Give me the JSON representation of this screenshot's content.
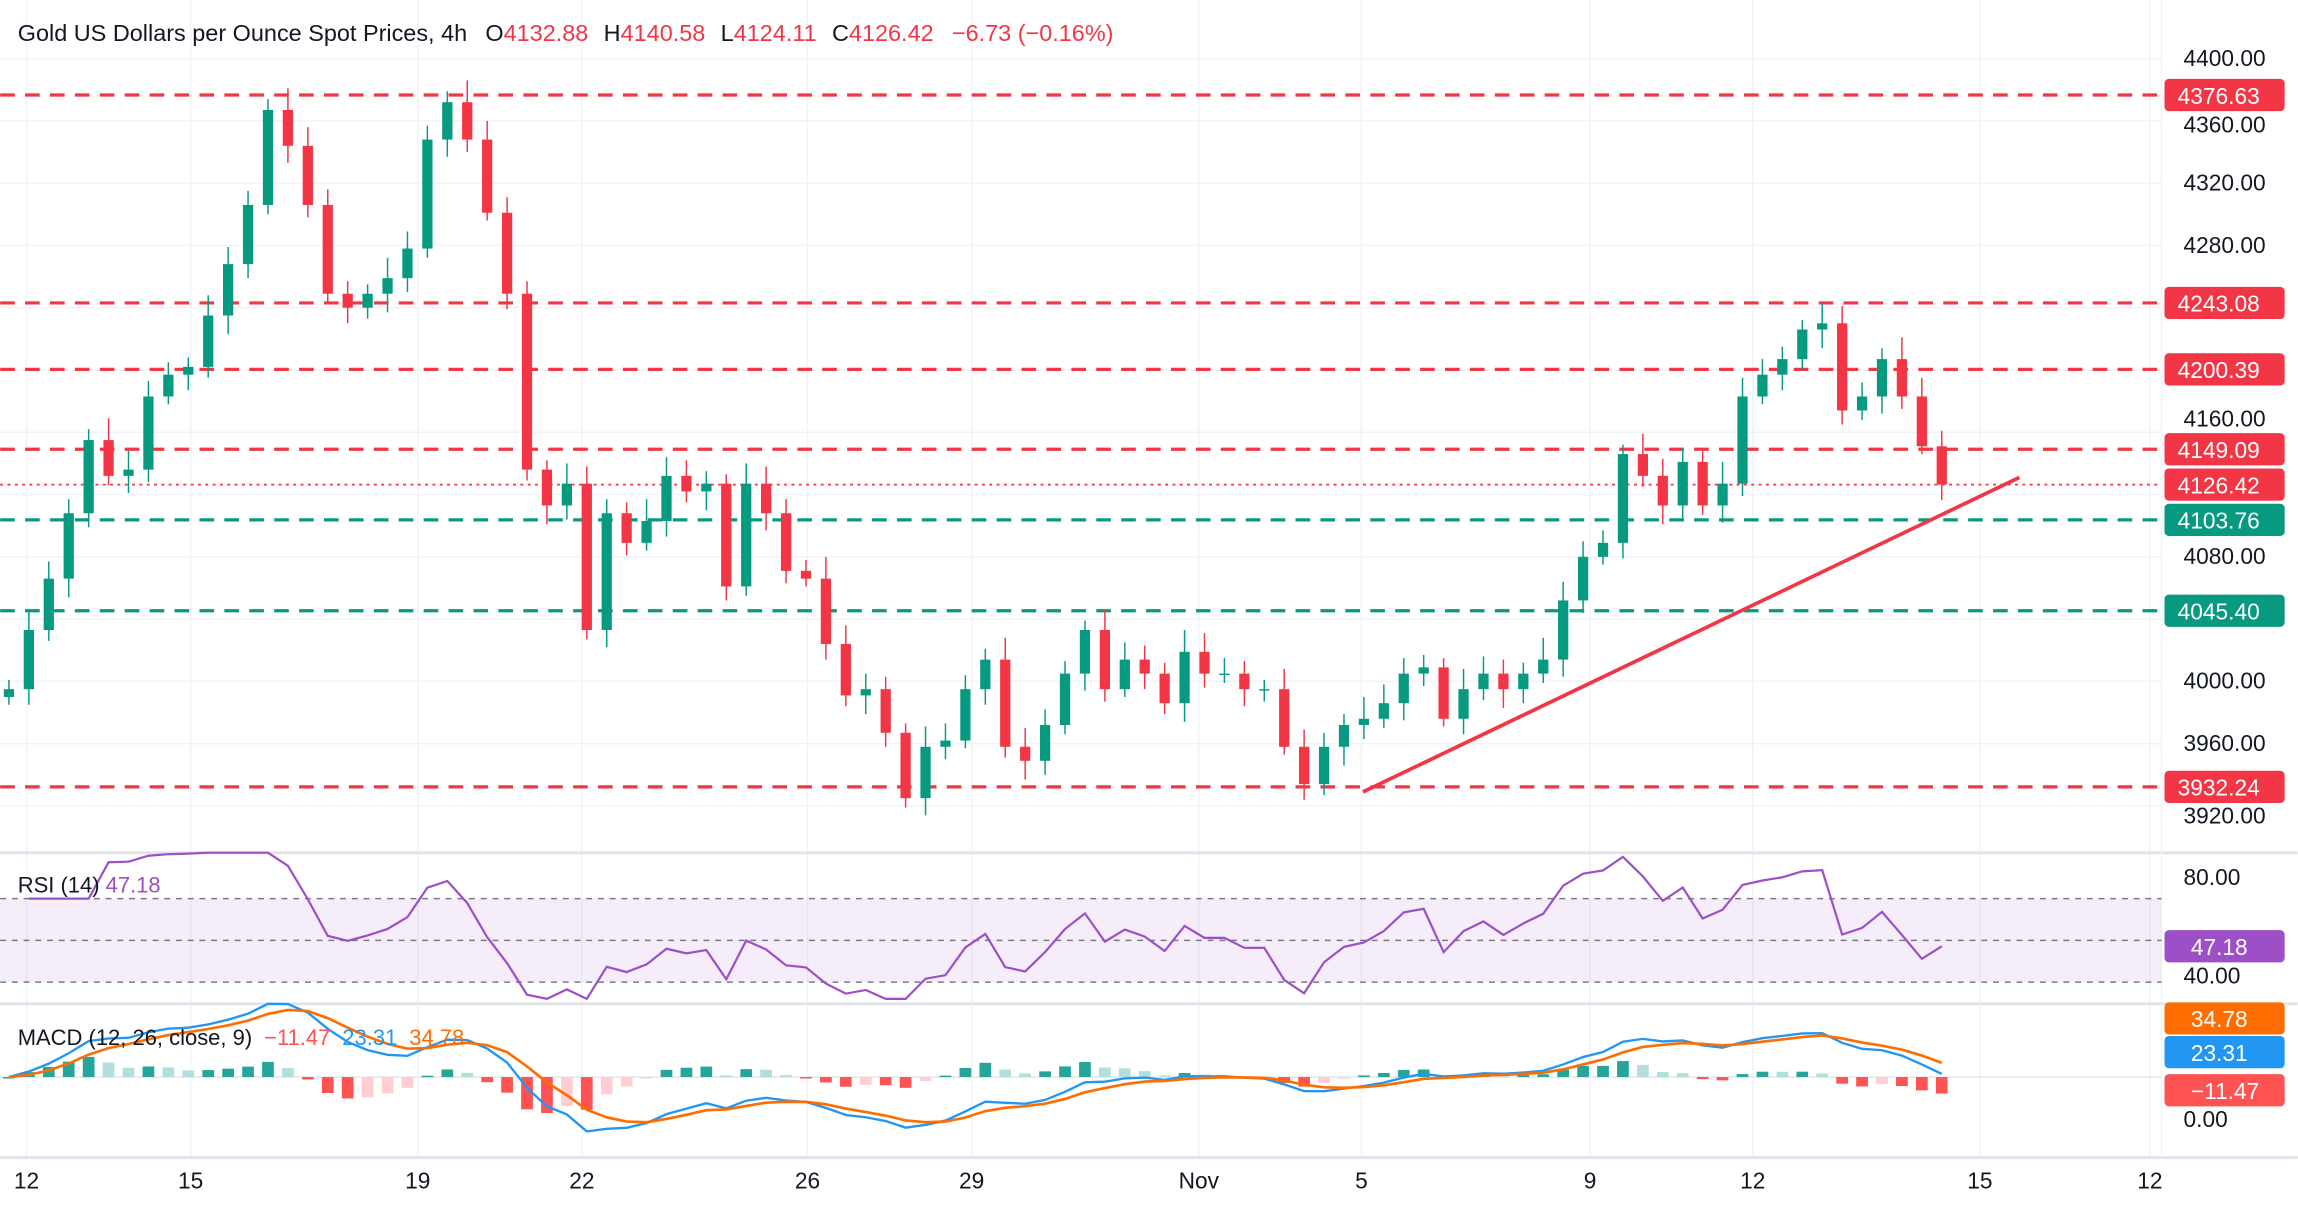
{
  "header": {
    "title": "Gold US Dollars per Ounce Spot Prices, 4h",
    "o_label": "O",
    "o_value": "4132.88",
    "h_label": "H",
    "h_value": "4140.58",
    "l_label": "L",
    "l_value": "4124.11",
    "c_label": "C",
    "c_value": "4126.42",
    "change": "−6.73 (−0.16%)"
  },
  "colors": {
    "up": "#089981",
    "down": "#f23645",
    "rsi": "#9c4fc6",
    "macd": "#2196f3",
    "signal": "#ff6d00",
    "hist_up": "#26a69a",
    "hist_up_weak": "#b2dfdb",
    "hist_down": "#ff5252",
    "hist_down_weak": "#ffcdd2"
  },
  "chart_data": [
    {
      "type": "candlestick",
      "title": "Gold US Dollars per Ounce Spot Prices, 4h",
      "ylim": [
        3895,
        4420
      ],
      "yticks": [
        "4400.00",
        "4360.00",
        "4320.00",
        "4280.00",
        "4160.00",
        "4080.00",
        "4000.00",
        "3960.00",
        "3920.00"
      ],
      "xticks": [
        "12",
        "15",
        "19",
        "22",
        "26",
        "29",
        "Nov",
        "5",
        "9",
        "12",
        "15",
        "12"
      ],
      "closes": [
        3995,
        4033,
        4066,
        4108,
        4155,
        4132,
        4136,
        4183,
        4197,
        4202,
        4235,
        4268,
        4306,
        4367,
        4344,
        4306,
        4249,
        4240,
        4249,
        4259,
        4278,
        4348,
        4372,
        4348,
        4301,
        4249,
        4136,
        4113,
        4127,
        4033,
        4108,
        4089,
        4103,
        4132,
        4122,
        4127,
        4061,
        4127,
        4108,
        4071,
        4066,
        4024,
        3991,
        3995,
        3967,
        3925,
        3958,
        3962,
        3995,
        4014,
        3958,
        3949,
        3972,
        4005,
        4033,
        3995,
        4014,
        4005,
        3986,
        4019,
        4005,
        4005,
        3995,
        3995,
        3958,
        3934,
        3958,
        3972,
        3976,
        3986,
        4005,
        4009,
        3976,
        3995,
        4005,
        3995,
        4005,
        4014,
        4052,
        4080,
        4089,
        4146,
        4132,
        4113,
        4141,
        4113,
        4127,
        4183,
        4197,
        4207,
        4226,
        4230,
        4174,
        4183,
        4207,
        4183,
        4151,
        4126.42
      ],
      "levels": [
        {
          "price": "4376.63",
          "kind": "resistance"
        },
        {
          "price": "4243.08",
          "kind": "resistance"
        },
        {
          "price": "4200.39",
          "kind": "resistance"
        },
        {
          "price": "4149.09",
          "kind": "resistance"
        },
        {
          "price": "4103.76",
          "kind": "support"
        },
        {
          "price": "4045.40",
          "kind": "support"
        },
        {
          "price": "3932.24",
          "kind": "resistance"
        }
      ],
      "last_price": "4126.42",
      "trendline": {
        "from_price": 3929,
        "to_price": 4131
      }
    },
    {
      "type": "line",
      "name": "RSI (14)",
      "label": "RSI (14)",
      "value": "47.18",
      "ylim": [
        20,
        95
      ],
      "yticks": [
        "80.00",
        "40.00"
      ],
      "bands": [
        70,
        50,
        30
      ]
    },
    {
      "type": "macd",
      "label": "MACD (12, 26, close, 9)",
      "hist_value": "−11.47",
      "macd_value": "23.31",
      "signal_value": "34.78",
      "ytick": "0.00"
    }
  ]
}
